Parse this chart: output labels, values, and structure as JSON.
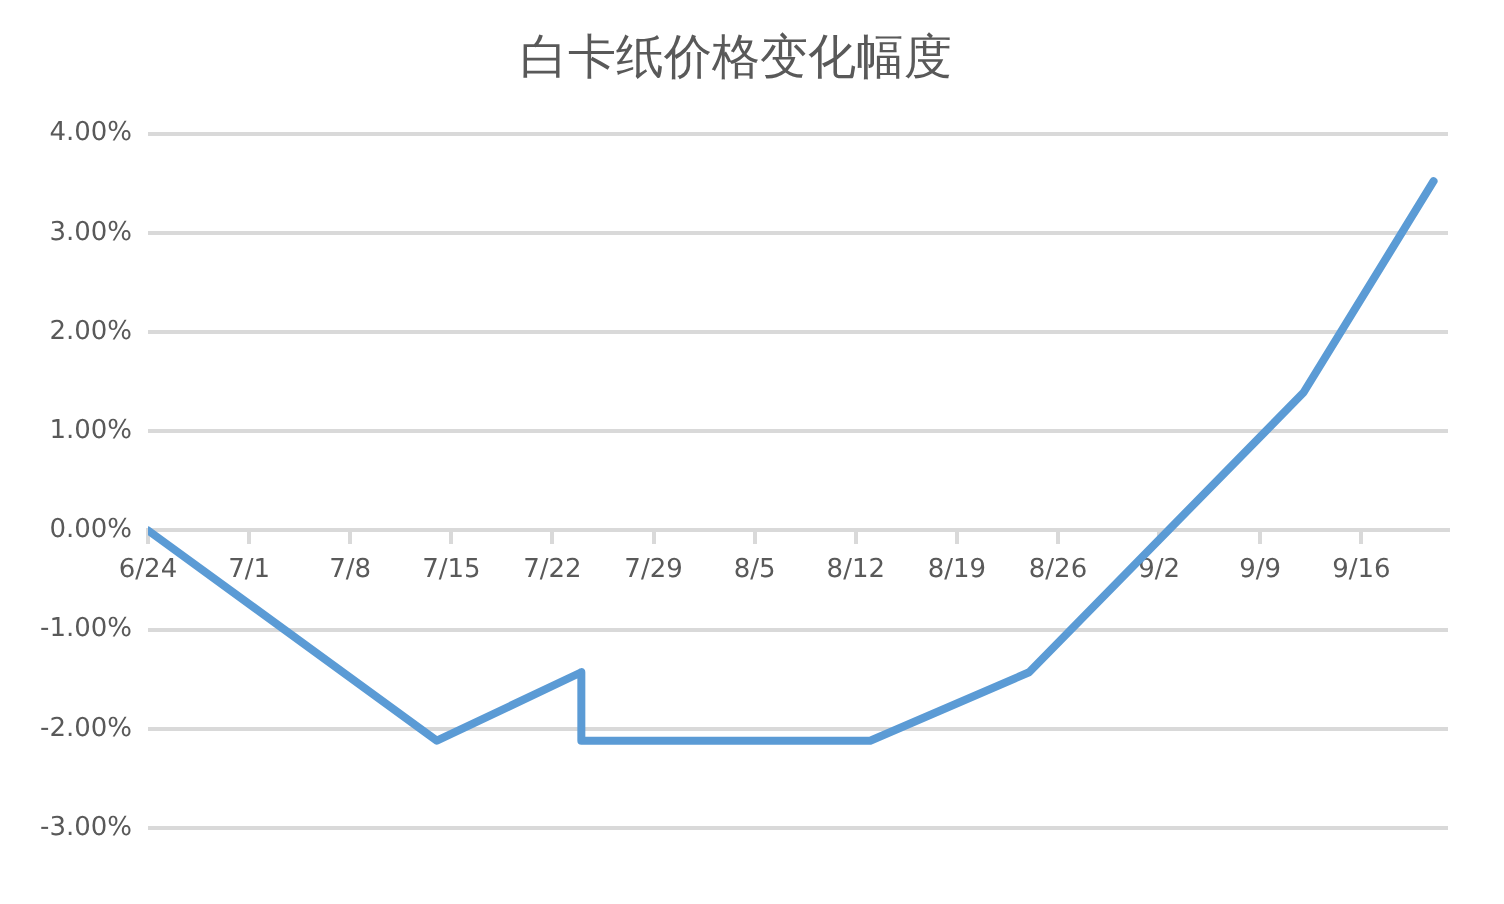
{
  "chart_data": {
    "type": "line",
    "title": "白卡纸价格变化幅度",
    "x": [
      "--06-24",
      "--07-14",
      "--07-24",
      "--07-24",
      "--08-13",
      "--08-24",
      "--09-12",
      "--09-21"
    ],
    "series": [
      {
        "color": "#5b9bd5",
        "values": [
          0,
          -2.12,
          -1.43,
          -2.12,
          -2.12,
          -1.43,
          1.39,
          3.52
        ]
      }
    ],
    "xlim": [
      "--06-24",
      "--09-22"
    ],
    "xticks": [
      {
        "value": "--06-24",
        "label": "6/24"
      },
      {
        "value": "--07-01",
        "label": "7/1"
      },
      {
        "value": "--07-08",
        "label": "7/8"
      },
      {
        "value": "--07-15",
        "label": "7/15"
      },
      {
        "value": "--07-22",
        "label": "7/22"
      },
      {
        "value": "--07-29",
        "label": "7/29"
      },
      {
        "value": "--08-05",
        "label": "8/5"
      },
      {
        "value": "--08-12",
        "label": "8/12"
      },
      {
        "value": "--08-19",
        "label": "8/19"
      },
      {
        "value": "--08-26",
        "label": "8/26"
      },
      {
        "value": "--09-02",
        "label": "9/2"
      },
      {
        "value": "--09-09",
        "label": "9/9"
      },
      {
        "value": "--09-16",
        "label": "9/16"
      }
    ],
    "ylim": [
      -3,
      4
    ],
    "yticks": [
      {
        "value": -3,
        "label": "-3.00%"
      },
      {
        "value": -2,
        "label": "-2.00%"
      },
      {
        "value": -1,
        "label": "-1.00%"
      },
      {
        "value": 0,
        "label": "0.00%"
      },
      {
        "value": 1,
        "label": "1.00%"
      },
      {
        "value": 2,
        "label": "2.00%"
      },
      {
        "value": 3,
        "label": "3.00%"
      },
      {
        "value": 4,
        "label": "4.00%"
      }
    ],
    "grid": "y",
    "legend": false,
    "marker": "none",
    "line_style": "solid"
  }
}
